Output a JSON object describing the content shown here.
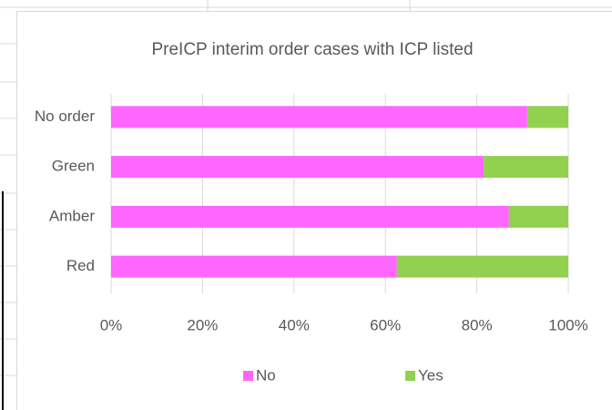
{
  "chart_data": {
    "type": "stacked_barh",
    "title": "PreICP interim order cases with ICP listed",
    "categories": [
      "No order",
      "Green",
      "Amber",
      "Red"
    ],
    "series": [
      {
        "name": "No",
        "color": "#ff66ff",
        "values": [
          91,
          81.5,
          87,
          62.5
        ]
      },
      {
        "name": "Yes",
        "color": "#92d050",
        "values": [
          9,
          18.5,
          13,
          37.5
        ]
      }
    ],
    "xlim": [
      0,
      100
    ],
    "xticks": [
      {
        "value": 0,
        "label": "0%"
      },
      {
        "value": 20,
        "label": "20%"
      },
      {
        "value": 40,
        "label": "40%"
      },
      {
        "value": 60,
        "label": "60%"
      },
      {
        "value": 80,
        "label": "80%"
      },
      {
        "value": 100,
        "label": "100%"
      }
    ],
    "grid": true,
    "legend": "bottom"
  }
}
